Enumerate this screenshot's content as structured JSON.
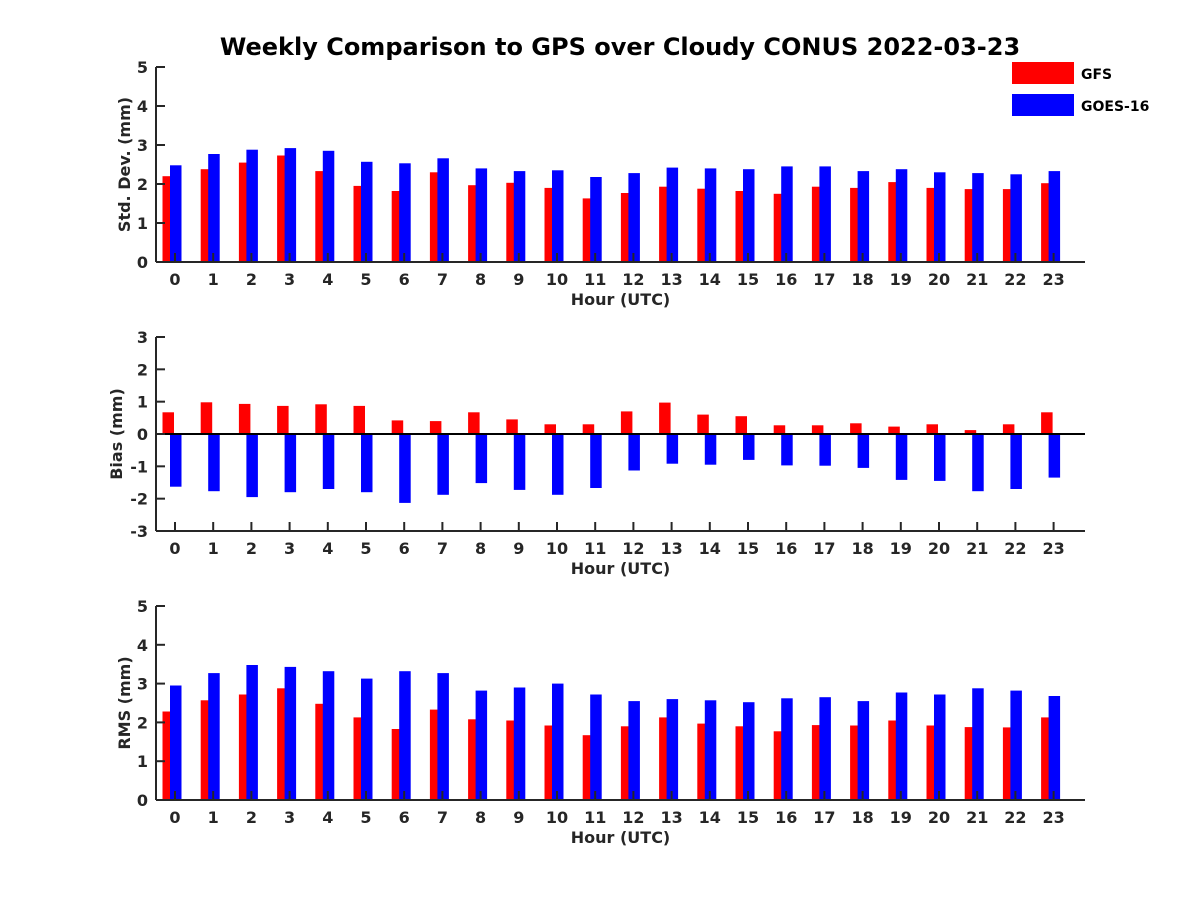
{
  "title": "Weekly Comparison to GPS over Cloudy CONUS 2022-03-23",
  "colors": {
    "GFS": "#ff0000",
    "GOES-16": "#0000ff",
    "axis": "#262626"
  },
  "legend": {
    "placement": "top-right",
    "entries": [
      "GFS",
      "GOES-16"
    ]
  },
  "chart_data": [
    {
      "type": "bar",
      "xlabel": "Hour (UTC)",
      "ylabel": "Std. Dev. (mm)",
      "ylim": [
        0,
        5
      ],
      "yticks": [
        0,
        1,
        2,
        3,
        4,
        5
      ],
      "categories": [
        "0",
        "1",
        "2",
        "3",
        "4",
        "5",
        "6",
        "7",
        "8",
        "9",
        "10",
        "11",
        "12",
        "13",
        "14",
        "15",
        "16",
        "17",
        "18",
        "19",
        "20",
        "21",
        "22",
        "23"
      ],
      "series": [
        {
          "name": "GFS",
          "values": [
            2.2,
            2.38,
            2.55,
            2.73,
            2.33,
            1.95,
            1.82,
            2.3,
            1.97,
            2.03,
            1.9,
            1.63,
            1.77,
            1.93,
            1.88,
            1.82,
            1.75,
            1.93,
            1.9,
            2.05,
            1.9,
            1.87,
            1.87,
            2.02
          ]
        },
        {
          "name": "GOES-16",
          "values": [
            2.48,
            2.77,
            2.88,
            2.92,
            2.85,
            2.57,
            2.53,
            2.66,
            2.4,
            2.33,
            2.35,
            2.18,
            2.28,
            2.42,
            2.4,
            2.38,
            2.45,
            2.45,
            2.33,
            2.38,
            2.3,
            2.28,
            2.25,
            2.33
          ]
        }
      ]
    },
    {
      "type": "bar",
      "xlabel": "Hour (UTC)",
      "ylabel": "Bias (mm)",
      "ylim": [
        -3,
        3
      ],
      "yticks": [
        -3,
        -2,
        -1,
        0,
        1,
        2,
        3
      ],
      "categories": [
        "0",
        "1",
        "2",
        "3",
        "4",
        "5",
        "6",
        "7",
        "8",
        "9",
        "10",
        "11",
        "12",
        "13",
        "14",
        "15",
        "16",
        "17",
        "18",
        "19",
        "20",
        "21",
        "22",
        "23"
      ],
      "series": [
        {
          "name": "GFS",
          "values": [
            0.67,
            0.98,
            0.93,
            0.87,
            0.92,
            0.87,
            0.42,
            0.4,
            0.67,
            0.45,
            0.3,
            0.3,
            0.7,
            0.97,
            0.6,
            0.55,
            0.27,
            0.27,
            0.33,
            0.23,
            0.3,
            0.12,
            0.3,
            0.67
          ]
        },
        {
          "name": "GOES-16",
          "values": [
            -1.63,
            -1.77,
            -1.95,
            -1.8,
            -1.7,
            -1.8,
            -2.13,
            -1.88,
            -1.52,
            -1.73,
            -1.88,
            -1.67,
            -1.13,
            -0.92,
            -0.95,
            -0.8,
            -0.97,
            -0.98,
            -1.05,
            -1.42,
            -1.45,
            -1.77,
            -1.7,
            -1.35
          ]
        }
      ]
    },
    {
      "type": "bar",
      "xlabel": "Hour (UTC)",
      "ylabel": "RMS (mm)",
      "ylim": [
        0,
        5
      ],
      "yticks": [
        0,
        1,
        2,
        3,
        4,
        5
      ],
      "categories": [
        "0",
        "1",
        "2",
        "3",
        "4",
        "5",
        "6",
        "7",
        "8",
        "9",
        "10",
        "11",
        "12",
        "13",
        "14",
        "15",
        "16",
        "17",
        "18",
        "19",
        "20",
        "21",
        "22",
        "23"
      ],
      "series": [
        {
          "name": "GFS",
          "values": [
            2.28,
            2.57,
            2.72,
            2.88,
            2.48,
            2.13,
            1.83,
            2.33,
            2.08,
            2.05,
            1.92,
            1.67,
            1.9,
            2.13,
            1.97,
            1.9,
            1.77,
            1.93,
            1.92,
            2.05,
            1.92,
            1.88,
            1.87,
            2.13
          ]
        },
        {
          "name": "GOES-16",
          "values": [
            2.95,
            3.27,
            3.48,
            3.43,
            3.32,
            3.13,
            3.32,
            3.27,
            2.82,
            2.9,
            3.0,
            2.72,
            2.55,
            2.6,
            2.57,
            2.52,
            2.62,
            2.65,
            2.55,
            2.77,
            2.72,
            2.88,
            2.82,
            2.68
          ]
        }
      ]
    }
  ]
}
